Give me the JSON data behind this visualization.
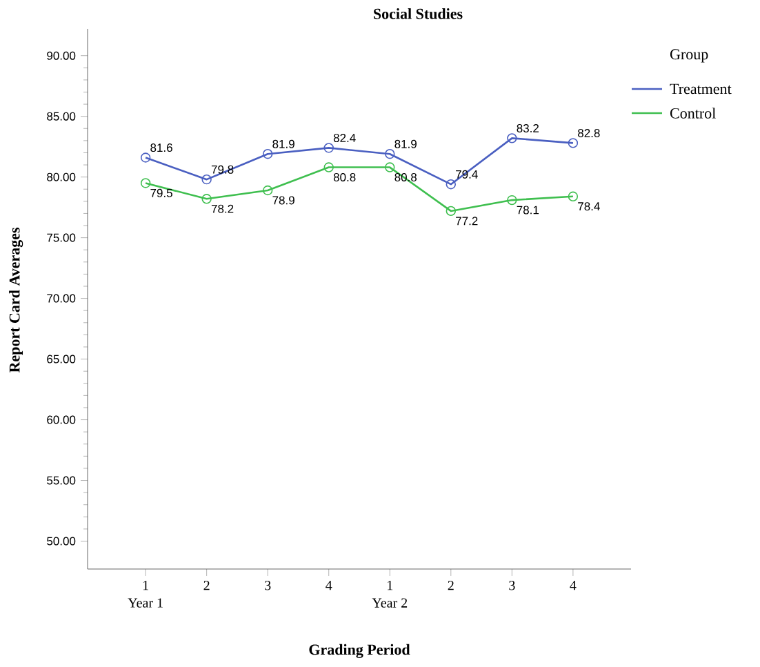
{
  "chart_data": {
    "type": "line",
    "title": "Social Studies",
    "xlabel": "Grading Period",
    "ylabel": "Report Card Averages",
    "legend_title": "Group",
    "categories": [
      "1",
      "2",
      "3",
      "4",
      "1",
      "2",
      "3",
      "4"
    ],
    "series": [
      {
        "name": "Treatment",
        "color": "#4a5fc1",
        "values": [
          81.6,
          79.8,
          81.9,
          82.4,
          81.9,
          79.4,
          83.2,
          82.8
        ]
      },
      {
        "name": "Control",
        "color": "#3fbf4f",
        "values": [
          79.5,
          78.2,
          78.9,
          80.8,
          80.8,
          77.2,
          78.1,
          78.4
        ]
      }
    ],
    "ylim": [
      47.7,
      92.2
    ],
    "yticks": [
      {
        "value": 50,
        "label": "50.00"
      },
      {
        "value": 55,
        "label": "55.00"
      },
      {
        "value": 60,
        "label": "60.00"
      },
      {
        "value": 65,
        "label": "65.00"
      },
      {
        "value": 70,
        "label": "70.00"
      },
      {
        "value": 75,
        "label": "75.00"
      },
      {
        "value": 80,
        "label": "80.00"
      },
      {
        "value": 85,
        "label": "85.00"
      },
      {
        "value": 90,
        "label": "90.00"
      }
    ],
    "annotations": [
      "Year 1",
      "Year 2"
    ],
    "data_labels": true,
    "legend": "right",
    "marker": "circle",
    "line_style": "solid",
    "grid": false
  }
}
